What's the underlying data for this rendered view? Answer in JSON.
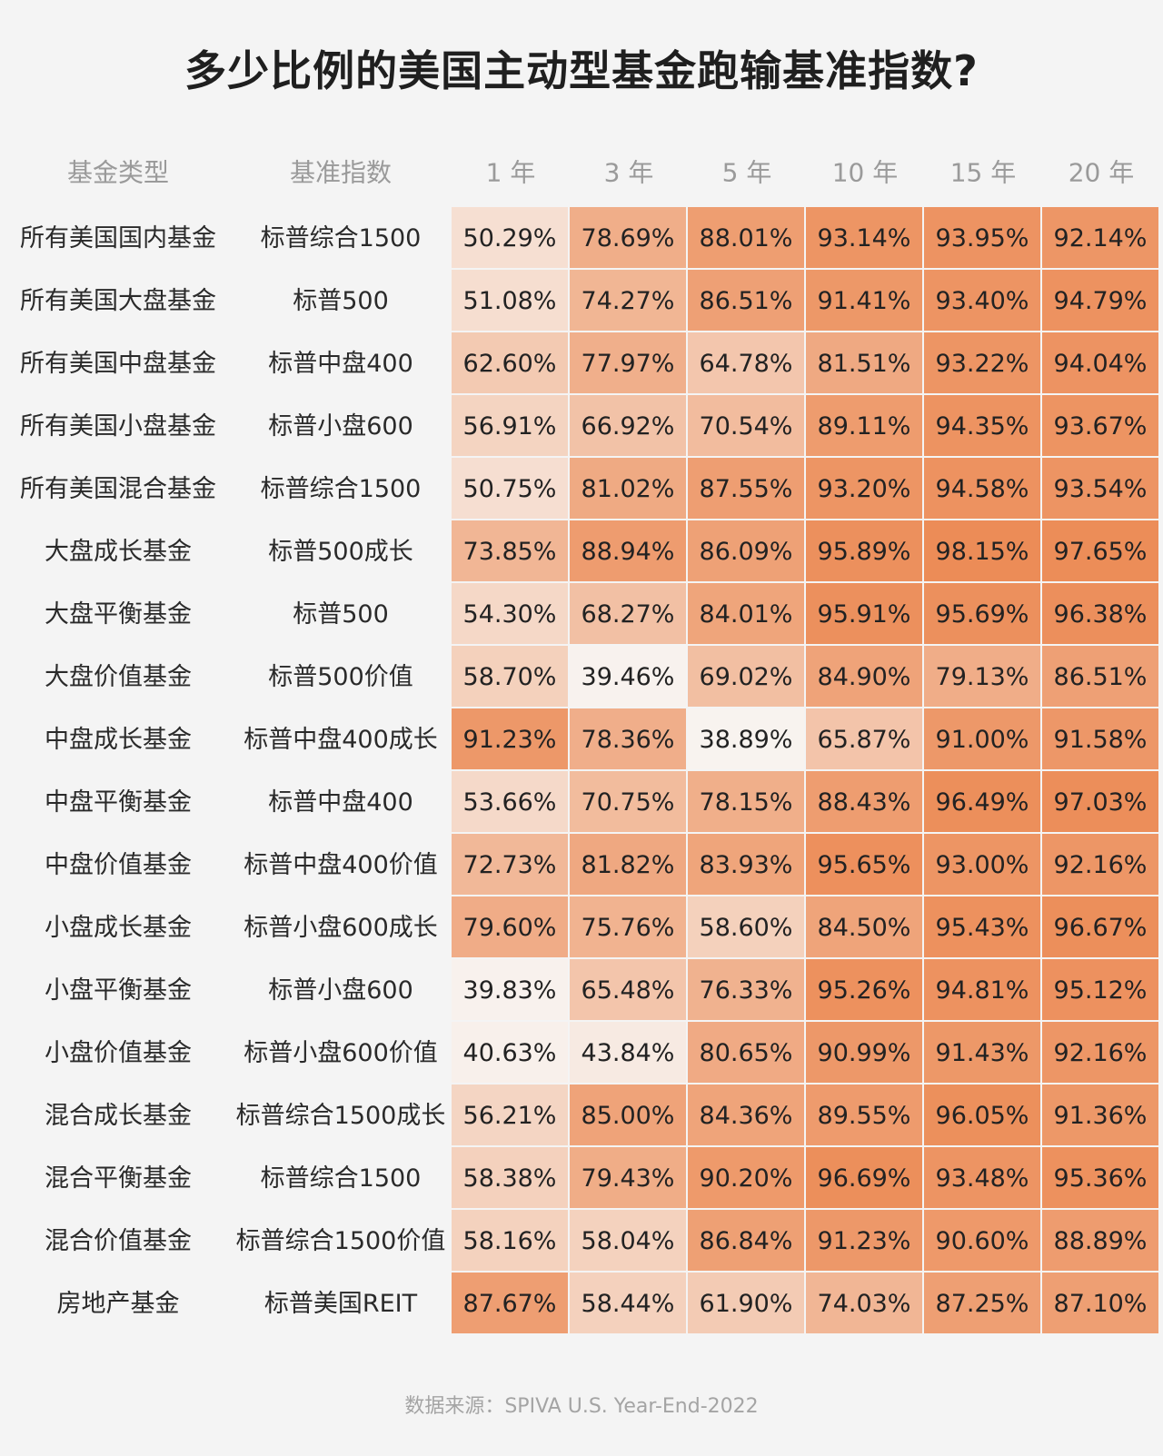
{
  "title": "多少比例的美国主动型基金跑输基准指数?",
  "source": "数据来源：SPIVA U.S. Year-End-2022",
  "colors": {
    "background": "#f4f4f4",
    "cell_low": "#f8f3ef",
    "cell_high": "#ec8c57",
    "header_text": "#9a9a9a",
    "label_text": "#2a2a2a",
    "value_text": "#222222",
    "source_text": "#a4a4a4"
  },
  "chart_data": {
    "type": "heatmap",
    "title": "多少比例的美国主动型基金跑输基准指数?",
    "row_header": "基金类型",
    "benchmark_header": "基准指数",
    "columns": [
      "1 年",
      "3 年",
      "5 年",
      "10 年",
      "15 年",
      "20 年"
    ],
    "rows": [
      {
        "fund": "所有美国国内基金",
        "benchmark": "标普综合1500",
        "values": [
          50.29,
          78.69,
          88.01,
          93.14,
          93.95,
          92.14
        ]
      },
      {
        "fund": "所有美国大盘基金",
        "benchmark": "标普500",
        "values": [
          51.08,
          74.27,
          86.51,
          91.41,
          93.4,
          94.79
        ]
      },
      {
        "fund": "所有美国中盘基金",
        "benchmark": "标普中盘400",
        "values": [
          62.6,
          77.97,
          64.78,
          81.51,
          93.22,
          94.04
        ]
      },
      {
        "fund": "所有美国小盘基金",
        "benchmark": "标普小盘600",
        "values": [
          56.91,
          66.92,
          70.54,
          89.11,
          94.35,
          93.67
        ]
      },
      {
        "fund": "所有美国混合基金",
        "benchmark": "标普综合1500",
        "values": [
          50.75,
          81.02,
          87.55,
          93.2,
          94.58,
          93.54
        ]
      },
      {
        "fund": "大盘成长基金",
        "benchmark": "标普500成长",
        "values": [
          73.85,
          88.94,
          86.09,
          95.89,
          98.15,
          97.65
        ]
      },
      {
        "fund": "大盘平衡基金",
        "benchmark": "标普500",
        "values": [
          54.3,
          68.27,
          84.01,
          95.91,
          95.69,
          96.38
        ]
      },
      {
        "fund": "大盘价值基金",
        "benchmark": "标普500价值",
        "values": [
          58.7,
          39.46,
          69.02,
          84.9,
          79.13,
          86.51
        ]
      },
      {
        "fund": "中盘成长基金",
        "benchmark": "标普中盘400成长",
        "values": [
          91.23,
          78.36,
          38.89,
          65.87,
          91.0,
          91.58
        ]
      },
      {
        "fund": "中盘平衡基金",
        "benchmark": "标普中盘400",
        "values": [
          53.66,
          70.75,
          78.15,
          88.43,
          96.49,
          97.03
        ]
      },
      {
        "fund": "中盘价值基金",
        "benchmark": "标普中盘400价值",
        "values": [
          72.73,
          81.82,
          83.93,
          95.65,
          93.0,
          92.16
        ]
      },
      {
        "fund": "小盘成长基金",
        "benchmark": "标普小盘600成长",
        "values": [
          79.6,
          75.76,
          58.6,
          84.5,
          95.43,
          96.67
        ]
      },
      {
        "fund": "小盘平衡基金",
        "benchmark": "标普小盘600",
        "values": [
          39.83,
          65.48,
          76.33,
          95.26,
          94.81,
          95.12
        ]
      },
      {
        "fund": "小盘价值基金",
        "benchmark": "标普小盘600价值",
        "values": [
          40.63,
          43.84,
          80.65,
          90.99,
          91.43,
          92.16
        ]
      },
      {
        "fund": "混合成长基金",
        "benchmark": "标普综合1500成长",
        "values": [
          56.21,
          85.0,
          84.36,
          89.55,
          96.05,
          91.36
        ]
      },
      {
        "fund": "混合平衡基金",
        "benchmark": "标普综合1500",
        "values": [
          58.38,
          79.43,
          90.2,
          96.69,
          93.48,
          95.36
        ]
      },
      {
        "fund": "混合价值基金",
        "benchmark": "标普综合1500价值",
        "values": [
          58.16,
          58.04,
          86.84,
          91.23,
          90.6,
          88.89
        ]
      },
      {
        "fund": "房地产基金",
        "benchmark": "标普美国REIT",
        "values": [
          87.67,
          58.44,
          61.9,
          74.03,
          87.25,
          87.1
        ]
      }
    ],
    "value_format": "percent_2dp",
    "value_range": [
      38.89,
      98.15
    ],
    "legend": "none",
    "grid": true
  }
}
